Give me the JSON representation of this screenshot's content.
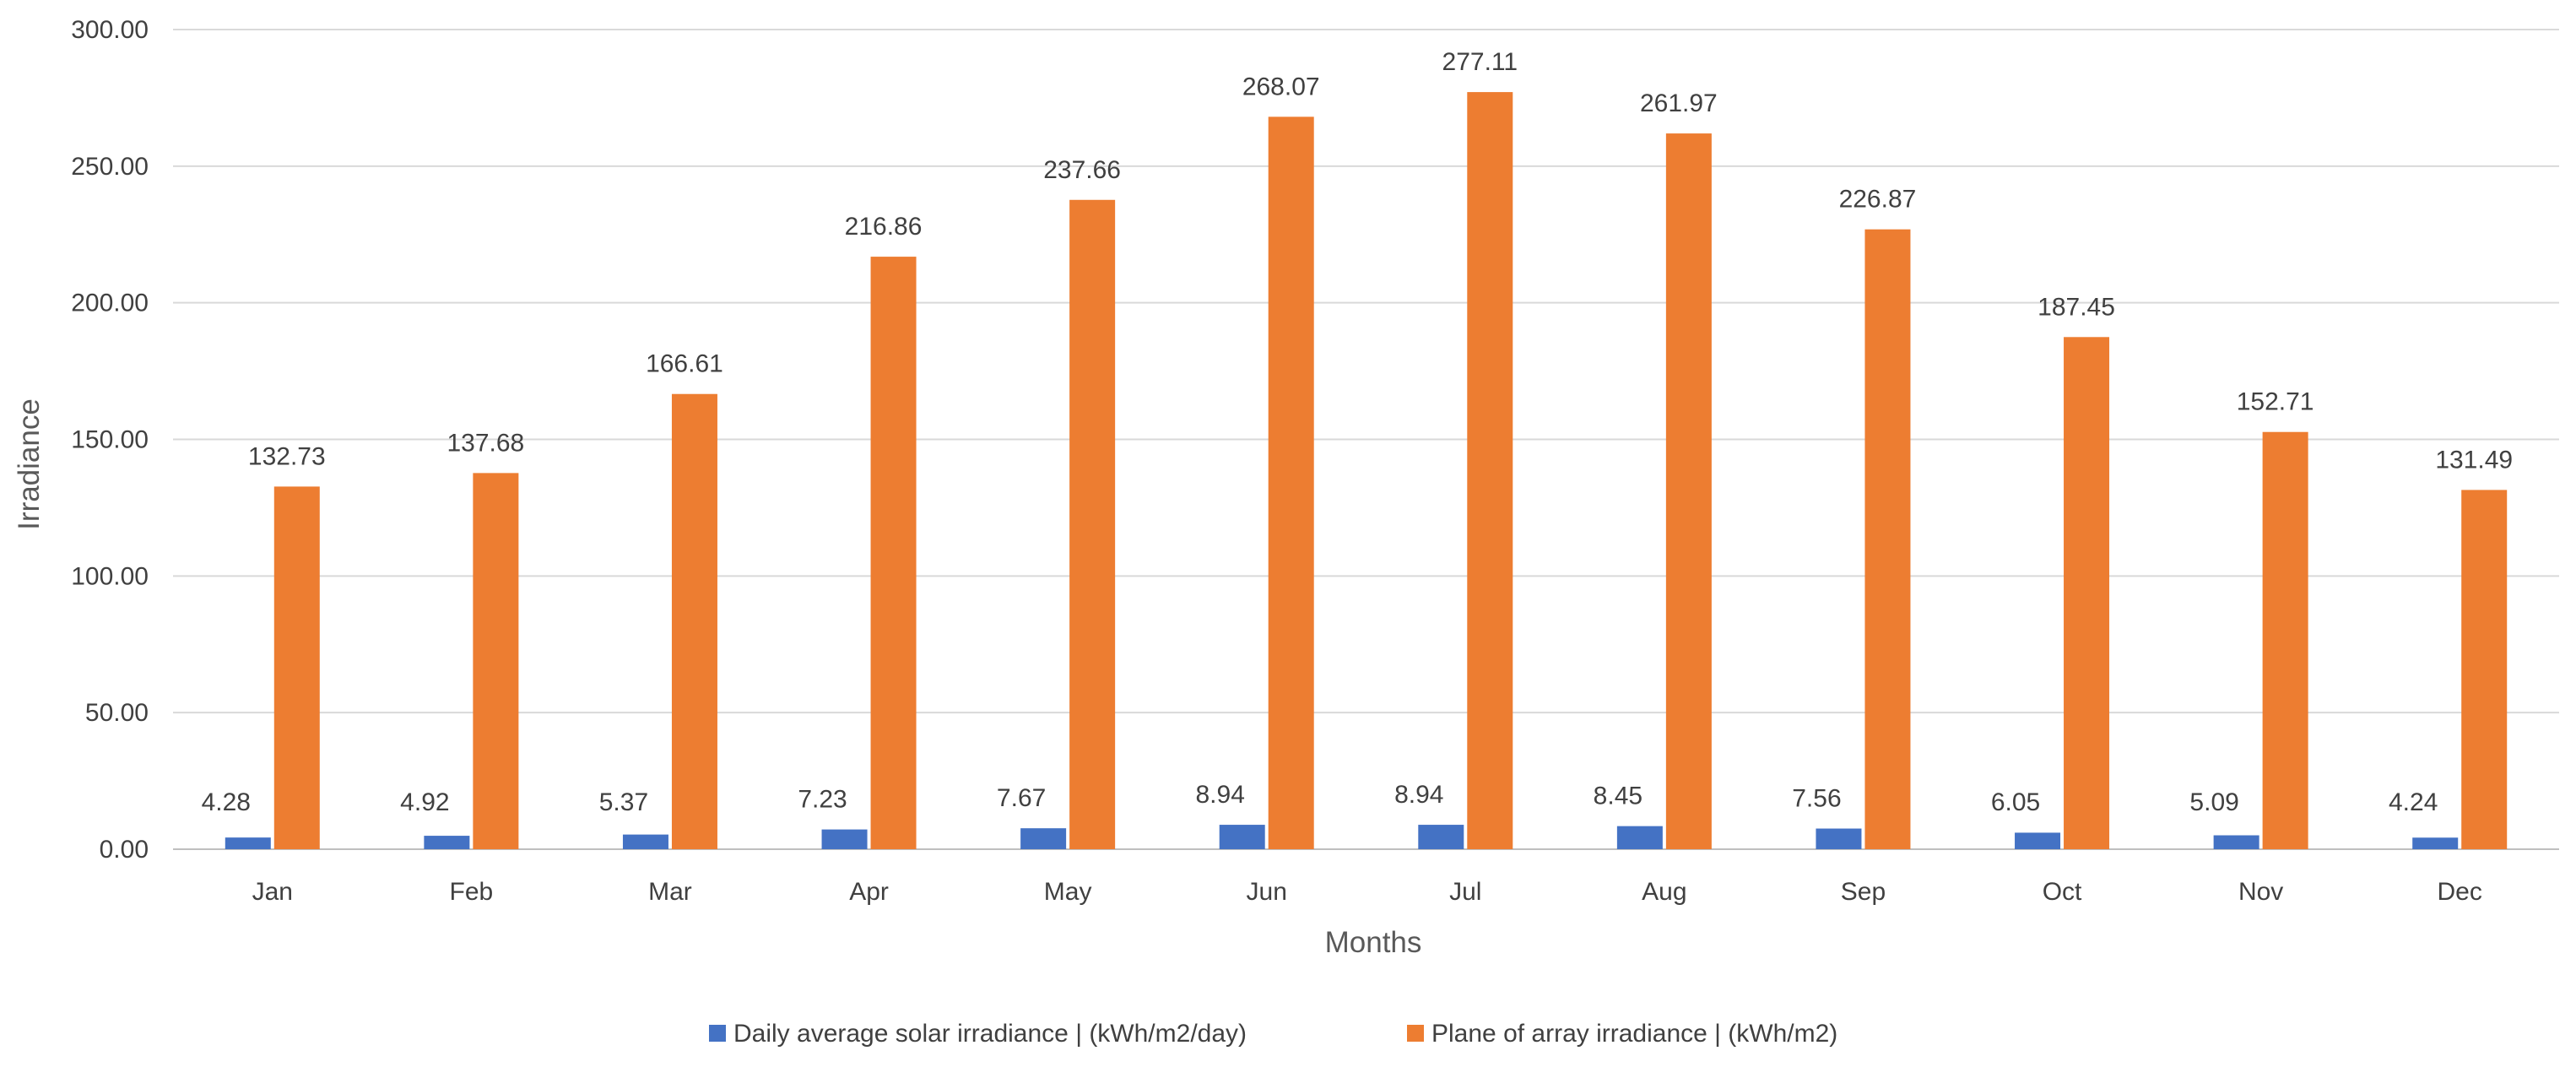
{
  "chart_data": {
    "type": "bar",
    "title": "",
    "xlabel": "Months",
    "ylabel": "Irradiance",
    "ylim": [
      0,
      300
    ],
    "yticks": [
      "0.00",
      "50.00",
      "100.00",
      "150.00",
      "200.00",
      "250.00",
      "300.00"
    ],
    "grid": true,
    "legend_position": "bottom",
    "categories": [
      "Jan",
      "Feb",
      "Mar",
      "Apr",
      "May",
      "Jun",
      "Jul",
      "Aug",
      "Sep",
      "Oct",
      "Nov",
      "Dec"
    ],
    "series": [
      {
        "name": "Daily average solar irradiance | (kWh/m2/day)",
        "color": "#4472C4",
        "values": [
          4.28,
          4.92,
          5.37,
          7.23,
          7.67,
          8.94,
          8.94,
          8.45,
          7.56,
          6.05,
          5.09,
          4.24
        ],
        "labels": [
          "4.28",
          "4.92",
          "5.37",
          "7.23",
          "7.67",
          "8.94",
          "8.94",
          "8.45",
          "7.56",
          "6.05",
          "5.09",
          "4.24"
        ]
      },
      {
        "name": "Plane of array irradiance | (kWh/m2)",
        "color": "#ED7D31",
        "values": [
          132.73,
          137.68,
          166.61,
          216.86,
          237.66,
          268.07,
          277.11,
          261.97,
          226.87,
          187.45,
          152.71,
          131.49
        ],
        "labels": [
          "132.73",
          "137.68",
          "166.61",
          "216.86",
          "237.66",
          "268.07",
          "277.11",
          "261.97",
          "226.87",
          "187.45",
          "152.71",
          "131.49"
        ]
      }
    ]
  }
}
